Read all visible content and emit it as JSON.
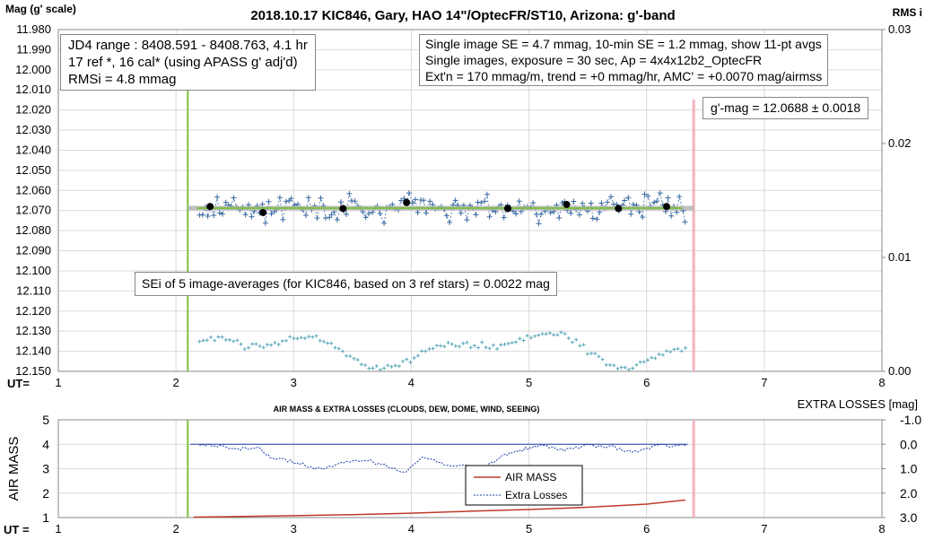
{
  "chart_data": [
    {
      "type": "scatter",
      "title": "2018.10.17 KIC846, Gary, HAO 14\"/OptecFR/ST10, Arizona: g'-band",
      "ylabel_left": "Mag (g' scale)",
      "ylabel_right": "RMS i",
      "xlabel": "UT=",
      "xlim": [
        1,
        8
      ],
      "ylim": [
        11.98,
        12.15
      ],
      "y2lim": [
        0.0,
        0.03
      ],
      "x_ticks": [
        "1",
        "2",
        "3",
        "4",
        "5",
        "6",
        "7",
        "8"
      ],
      "y_ticks": [
        "11.980",
        "11.990",
        "12.000",
        "12.010",
        "12.020",
        "12.030",
        "12.040",
        "12.050",
        "12.060",
        "12.070",
        "12.080",
        "12.090",
        "12.100",
        "12.110",
        "12.120",
        "12.130",
        "12.140",
        "12.150"
      ],
      "y2_ticks": [
        "0.03",
        "0.02",
        "0.01",
        "0.00"
      ],
      "grid": true,
      "vlines": [
        {
          "x": 2.1,
          "color": "#7dc142"
        },
        {
          "x": 6.4,
          "color": "#f2b3be"
        }
      ],
      "fit_line": {
        "y": 12.0688,
        "color": "#7dc142"
      },
      "gray_line": {
        "x": [
          2.1,
          6.4
        ],
        "y": 12.0688,
        "color": "#b0b0b0"
      },
      "averages": {
        "x": [
          2.29,
          2.74,
          3.42,
          3.96,
          4.82,
          5.32,
          5.76,
          6.17
        ],
        "y": [
          12.068,
          12.071,
          12.069,
          12.066,
          12.069,
          12.067,
          12.069,
          12.068
        ]
      },
      "series": [
        {
          "name": "single images",
          "color": "#3a6aa3",
          "range": [
            2.2,
            6.33
          ],
          "center": 12.0688,
          "spread": 0.0047
        },
        {
          "name": "RMSi",
          "color": "#5aa9b8",
          "range": [
            2.2,
            6.33
          ]
        }
      ],
      "annotations": {
        "left_box": [
          "JD4 range : 8408.591 - 8408.763,  4.1  hr",
          "17 ref *, 16 cal* (using APASS g' adj'd)",
          "RMSi = 4.8 mmag"
        ],
        "right_box": [
          "Single image SE = 4.7 mmag, 10-min SE = 1.2 mmag, show  11-pt avgs",
          "Single images, exposure = 30 sec, Ap = 4x4x12b2_OptecFR",
          "Ext'n = 170 mmag/m, trend =  +0 mmag/hr, AMC' = +0.0070 mag/airmss"
        ],
        "gmag_box": "g'-mag = 12.0688 ± 0.0018",
        "sei_box": "SEi of 5 image-averages (for KIC846, based on 3 ref stars) = 0.0022 mag"
      }
    },
    {
      "type": "line",
      "title": "AIR MASS & EXTRA LOSSES (CLOUDS, DEW, DOME, WIND, SEEING)",
      "ylabel_left": "AIR MASS",
      "ylabel_right": "EXTRA LOSSES [mag]",
      "xlabel": "UT =",
      "xlim": [
        1,
        8
      ],
      "ylim": [
        1,
        5
      ],
      "y2lim": [
        -1.0,
        3.0
      ],
      "x_ticks": [
        "1",
        "2",
        "3",
        "4",
        "5",
        "6",
        "7",
        "8"
      ],
      "y_ticks": [
        "5",
        "4",
        "3",
        "2",
        "1"
      ],
      "y2_ticks": [
        "-1.0",
        "0.0",
        "1.0",
        "2.0",
        "3.0"
      ],
      "grid": true,
      "legend_placement": "center",
      "vlines": [
        {
          "x": 2.1,
          "color": "#7dc142"
        },
        {
          "x": 6.4,
          "color": "#f2b3be"
        }
      ],
      "series": [
        {
          "name": "AIR MASS",
          "color": "#c0392b",
          "x": [
            2.15,
            2.5,
            3.0,
            3.5,
            4.0,
            4.5,
            5.0,
            5.5,
            6.0,
            6.33
          ],
          "y": [
            1.02,
            1.04,
            1.08,
            1.12,
            1.18,
            1.26,
            1.33,
            1.42,
            1.55,
            1.72
          ]
        },
        {
          "name": "Extra Losses",
          "color": "#1f3fa8",
          "x": [
            2.2,
            2.4,
            2.55,
            2.7,
            2.8,
            3.0,
            3.2,
            3.4,
            3.6,
            3.8,
            3.95,
            4.1,
            4.3,
            4.6,
            4.8,
            4.95,
            5.1,
            5.3,
            5.5,
            5.7,
            5.9,
            6.1,
            6.33
          ],
          "y": [
            0.0,
            0.05,
            0.2,
            0.1,
            0.5,
            0.7,
            1.0,
            0.8,
            0.6,
            0.9,
            1.1,
            0.5,
            0.8,
            1.0,
            0.4,
            0.2,
            0.05,
            0.2,
            0.05,
            0.1,
            0.3,
            0.05,
            0.05
          ]
        }
      ],
      "baseline": {
        "y": 0.0,
        "color": "#1f3fa8"
      }
    }
  ]
}
